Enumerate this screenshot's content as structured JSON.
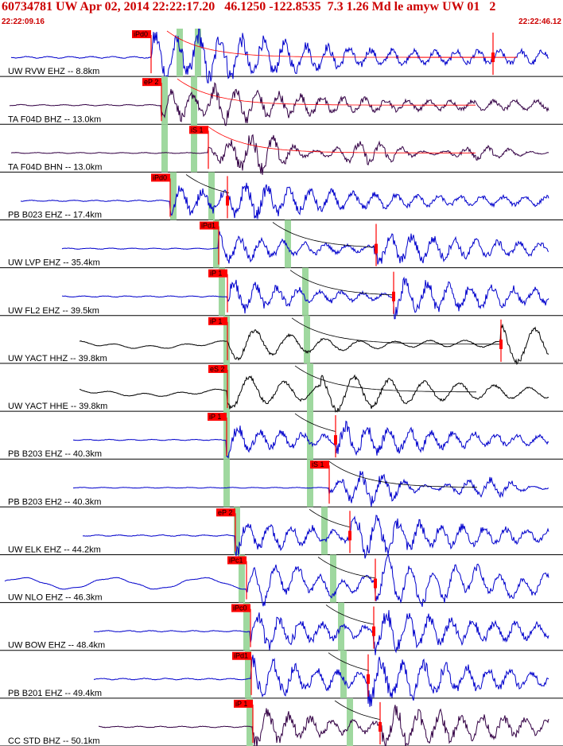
{
  "header": {
    "title": "60734781 UW Apr 02, 2014 22:22:17.20   46.1250 -122.8535  7.3 1.26 Md le amyw UW 01   2",
    "start_time": "22:22:09.16",
    "end_time": "22:22:46.12"
  },
  "colors": {
    "blue": "#0000cc",
    "black": "#000000",
    "dark_purple": "#330044",
    "pick_red": "#ff0000",
    "green_band": "#9fd89f",
    "header_red": "#cc0000"
  },
  "traces": [
    {
      "label": "UW RVW EHZ -- 8.8km",
      "pick": "iPd0",
      "color": "blue"
    },
    {
      "label": "TA F04D BHZ -- 13.0km",
      "pick": "eP 2",
      "color": "dark_purple"
    },
    {
      "label": "TA F04D BHN -- 13.0km",
      "pick": "iS 1",
      "color": "dark_purple"
    },
    {
      "label": "PB B023 EHZ -- 17.4km",
      "pick": "iPd0",
      "color": "blue"
    },
    {
      "label": "UW LVP EHZ -- 35.4km",
      "pick": "iPd1",
      "color": "blue"
    },
    {
      "label": "UW FL2 EHZ -- 39.5km",
      "pick": "iP 1",
      "color": "blue"
    },
    {
      "label": "UW YACT HHZ -- 39.8km",
      "pick": "iP 1",
      "color": "black"
    },
    {
      "label": "UW YACT HHE -- 39.8km",
      "pick": "eS 2",
      "color": "black"
    },
    {
      "label": "PB B203 EHZ -- 40.3km",
      "pick": "iP 1",
      "color": "blue"
    },
    {
      "label": "PB B203 EH2 -- 40.3km",
      "pick": "iS 1",
      "color": "blue"
    },
    {
      "label": "UW ELK EHZ -- 44.2km",
      "pick": "eP 2",
      "color": "blue"
    },
    {
      "label": "UW NLO EHZ -- 46.3km",
      "pick": "iPc1",
      "color": "blue"
    },
    {
      "label": "UW BOW EHZ -- 48.4km",
      "pick": "iPc0",
      "color": "blue"
    },
    {
      "label": "PB B201 EHZ -- 49.4km",
      "pick": "iPd1",
      "color": "blue"
    },
    {
      "label": "CC STD BHZ -- 50.1km",
      "pick": "iP 1",
      "color": "dark_purple"
    }
  ]
}
